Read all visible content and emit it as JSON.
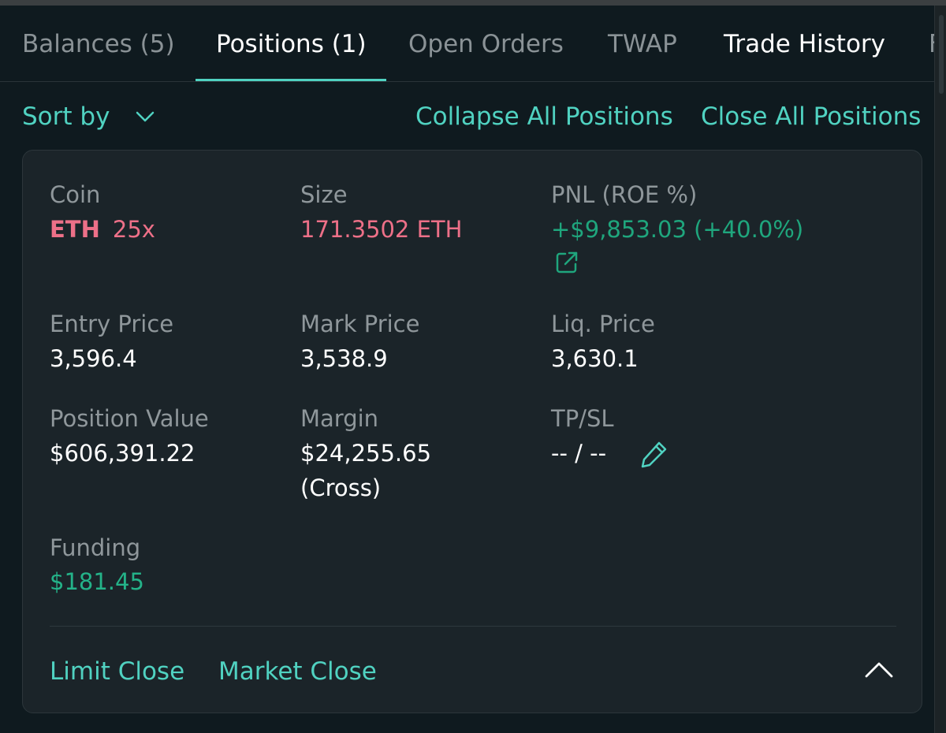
{
  "tabs": [
    {
      "label": "Balances (5)"
    },
    {
      "label": "Positions (1)"
    },
    {
      "label": "Open Orders"
    },
    {
      "label": "TWAP"
    },
    {
      "label": "Trade History"
    },
    {
      "label": "F"
    }
  ],
  "actions": {
    "sort_by": "Sort by",
    "collapse_all": "Collapse All Positions",
    "close_all": "Close All Positions"
  },
  "position": {
    "coin_label": "Coin",
    "coin_symbol": "ETH",
    "leverage": "25x",
    "size_label": "Size",
    "size_value": "171.3502 ETH",
    "pnl_label": "PNL (ROE %)",
    "pnl_value": "+$9,853.03 (+40.0%)",
    "entry_label": "Entry Price",
    "entry_value": "3,596.4",
    "mark_label": "Mark Price",
    "mark_value": "3,538.9",
    "liq_label": "Liq. Price",
    "liq_value": "3,630.1",
    "value_label": "Position Value",
    "value_value": "$606,391.22",
    "margin_label": "Margin",
    "margin_value": "$24,255.65",
    "margin_mode": "(Cross)",
    "tpsl_label": "TP/SL",
    "tpsl_value": "-- / --",
    "funding_label": "Funding",
    "funding_value": "$181.45"
  },
  "card_actions": {
    "limit_close": "Limit Close",
    "market_close": "Market Close"
  },
  "icons": {
    "sort": "chevron-down-icon",
    "share": "external-link-icon",
    "edit": "pencil-icon",
    "collapse": "chevron-up-icon"
  },
  "colors": {
    "accent": "#50d2c1",
    "short": "#ed7088",
    "profit": "#1fa67d",
    "background": "#0f1a1f",
    "card": "#1b2429"
  }
}
